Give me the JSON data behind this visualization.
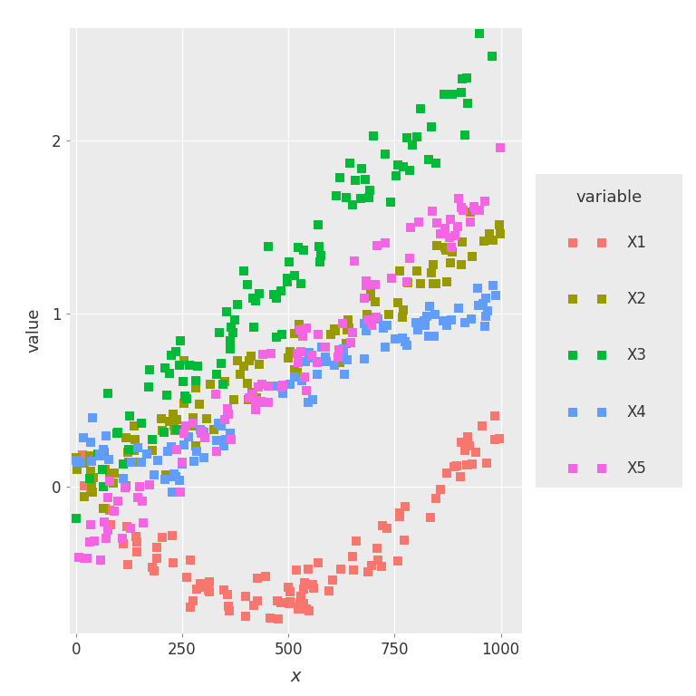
{
  "title": "",
  "xlabel": "x",
  "ylabel": "value",
  "legend_title": "variable",
  "series": [
    "X1",
    "X2",
    "X3",
    "X4",
    "X5"
  ],
  "colors": {
    "X1": "#F8766D",
    "X2": "#999900",
    "X3": "#00BA38",
    "X4": "#619CFF",
    "X5": "#F564E3"
  },
  "n_points": 100,
  "xlim": [
    -15,
    1050
  ],
  "ylim": [
    -0.85,
    2.65
  ],
  "yticks": [
    0.0,
    1.0,
    2.0
  ],
  "xticks": [
    0,
    250,
    500,
    750,
    1000
  ],
  "background_color": "#EBEBEB",
  "grid_color": "#FFFFFF",
  "seed": 42,
  "marker_size": 52
}
